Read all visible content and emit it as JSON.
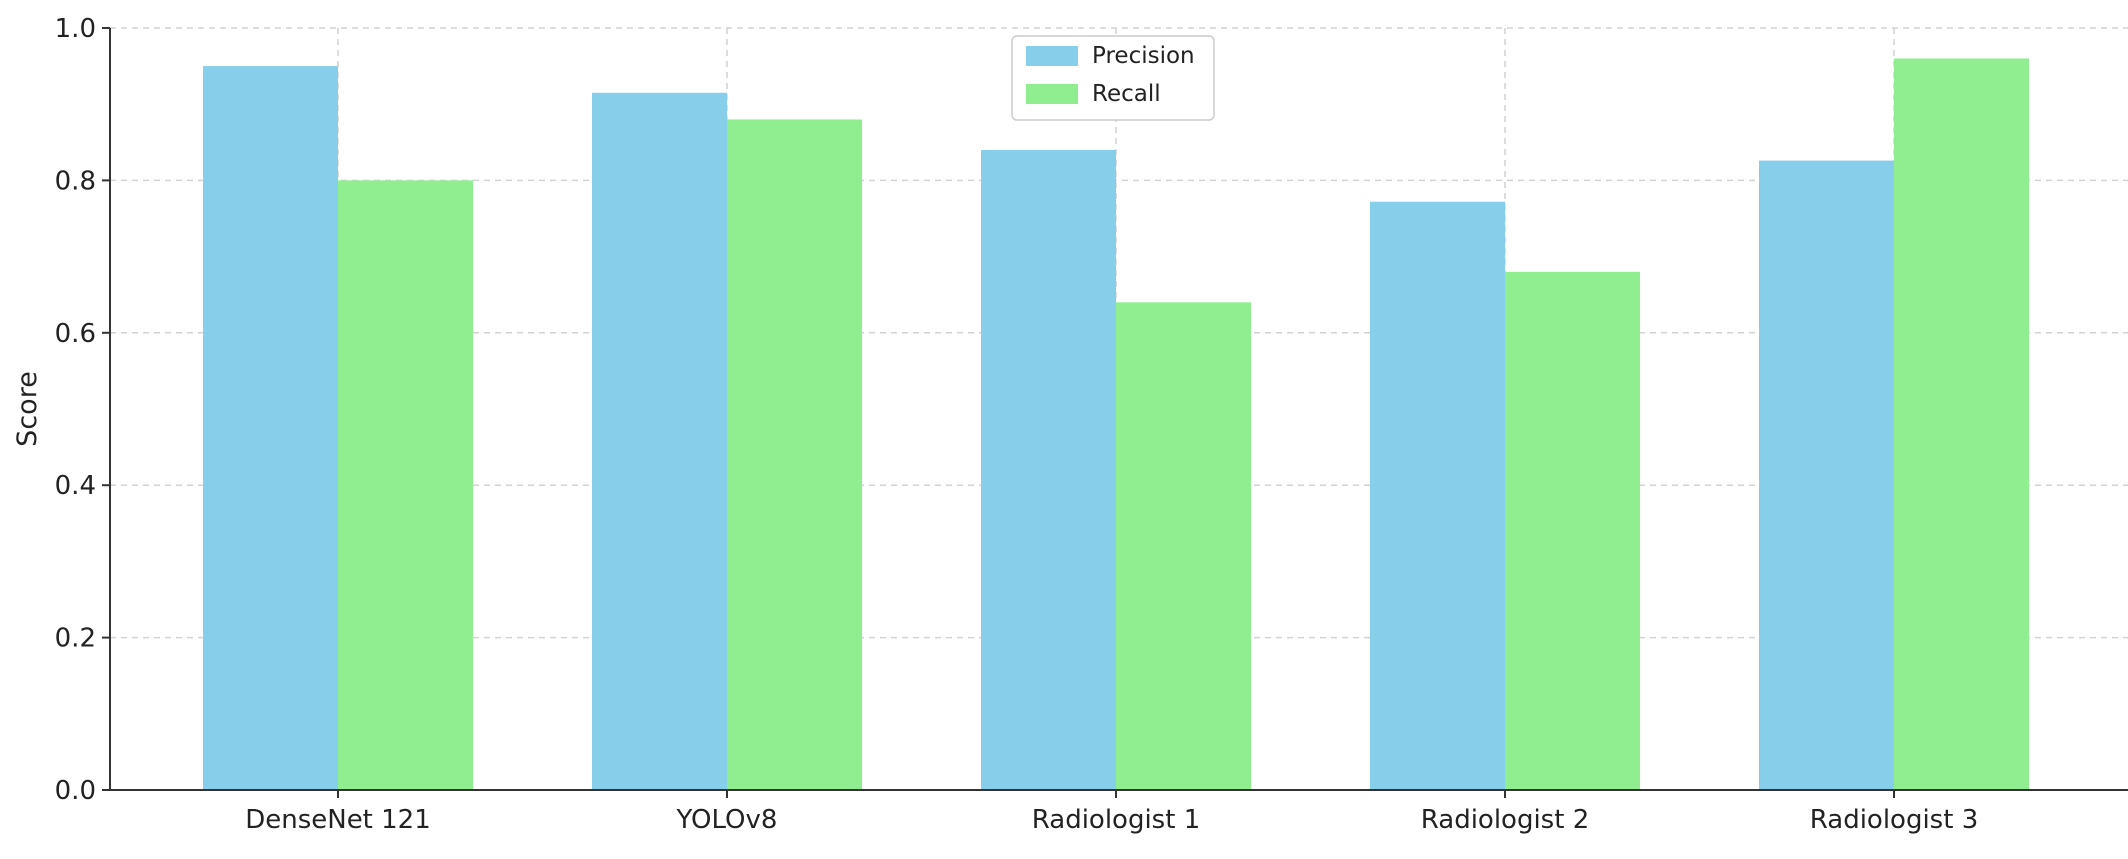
{
  "chart_data": {
    "type": "bar",
    "title": "",
    "xlabel": "",
    "ylabel": "Score",
    "ylim": [
      0,
      1.0
    ],
    "yticks": [
      "0.0",
      "0.2",
      "0.4",
      "0.6",
      "0.8",
      "1.0"
    ],
    "categories": [
      "DenseNet 121",
      "YOLOv8",
      "Radiologist 1",
      "Radiologist 2",
      "Radiologist 3"
    ],
    "series": [
      {
        "name": "Precision",
        "color": "#87ceeb",
        "values": [
          0.95,
          0.915,
          0.84,
          0.772,
          0.826
        ]
      },
      {
        "name": "Recall",
        "color": "#90ee90",
        "values": [
          0.8,
          0.88,
          0.64,
          0.68,
          0.96
        ]
      }
    ],
    "grid": true,
    "legend_position": "top-center"
  }
}
